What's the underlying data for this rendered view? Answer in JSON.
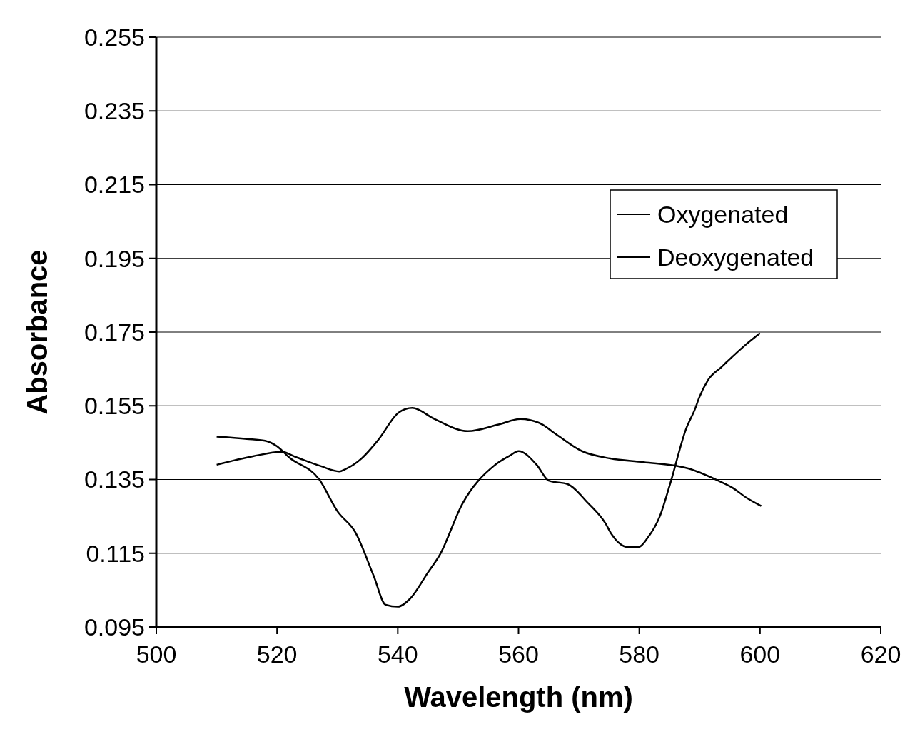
{
  "chart_data": {
    "type": "line",
    "xlabel": "Wavelength (nm)",
    "ylabel": "Absorbance",
    "xlim": [
      500,
      620
    ],
    "xticks": [
      500,
      520,
      540,
      560,
      580,
      600,
      620
    ],
    "ylim": [
      0.095,
      0.255
    ],
    "yticks": [
      {
        "value": 0.095,
        "label": "0.095"
      },
      {
        "value": 0.115,
        "label": "0.115"
      },
      {
        "value": 0.135,
        "label": "0.135"
      },
      {
        "value": 0.155,
        "label": "0.155"
      },
      {
        "value": 0.175,
        "label": "0.175"
      },
      {
        "value": 0.195,
        "label": "0.195"
      },
      {
        "value": 0.215,
        "label": "0.215"
      },
      {
        "value": 0.235,
        "label": "0.235"
      },
      {
        "value": 0.255,
        "label": "0.255"
      }
    ],
    "grid": "y",
    "legend": "top right",
    "marker": "none",
    "line_style": "solid",
    "series": [
      {
        "name": "Oxygenated",
        "color": "#000000",
        "x": [
          510,
          515,
          518,
          520,
          522,
          527,
          530,
          533,
          536,
          538,
          540,
          542,
          545,
          547,
          550.7,
          556,
          558.6,
          560,
          563,
          565,
          568.2,
          571.4,
          574.4,
          575.4,
          578.1,
          579.9,
          581.4,
          583.4,
          585.2,
          587.7,
          589.3,
          589.9,
          591.4,
          593.6,
          597.5,
          600
        ],
        "values": [
          0.1466,
          0.146,
          0.1455,
          0.144,
          0.141,
          0.135,
          0.1264,
          0.1206,
          0.1089,
          0.101,
          0.1005,
          0.1026,
          0.1098,
          0.1147,
          0.1284,
          0.1388,
          0.1415,
          0.1427,
          0.139,
          0.1347,
          0.1337,
          0.1288,
          0.1231,
          0.1202,
          0.1167,
          0.1167,
          0.1192,
          0.125,
          0.1343,
          0.1485,
          0.1544,
          0.1571,
          0.162,
          0.1655,
          0.1714,
          0.1747
        ]
      },
      {
        "name": "Deoxygenated",
        "color": "#000000",
        "x": [
          510,
          516,
          520.8,
          523.1,
          527.3,
          530.3,
          531.3,
          534,
          536.7,
          540.2,
          542.4,
          546.1,
          551.6,
          556.7,
          560.3,
          563.5,
          566.2,
          570.5,
          575.2,
          580.7,
          588.1,
          592.8,
          595.5,
          597.8,
          600.2
        ],
        "values": [
          0.139,
          0.1413,
          0.1425,
          0.1411,
          0.1386,
          0.1372,
          0.1378,
          0.1407,
          0.1456,
          0.1532,
          0.1544,
          0.1514,
          0.1481,
          0.1499,
          0.1514,
          0.1503,
          0.1473,
          0.1427,
          0.1407,
          0.1397,
          0.138,
          0.1349,
          0.1327,
          0.13,
          0.1278
        ]
      }
    ]
  }
}
